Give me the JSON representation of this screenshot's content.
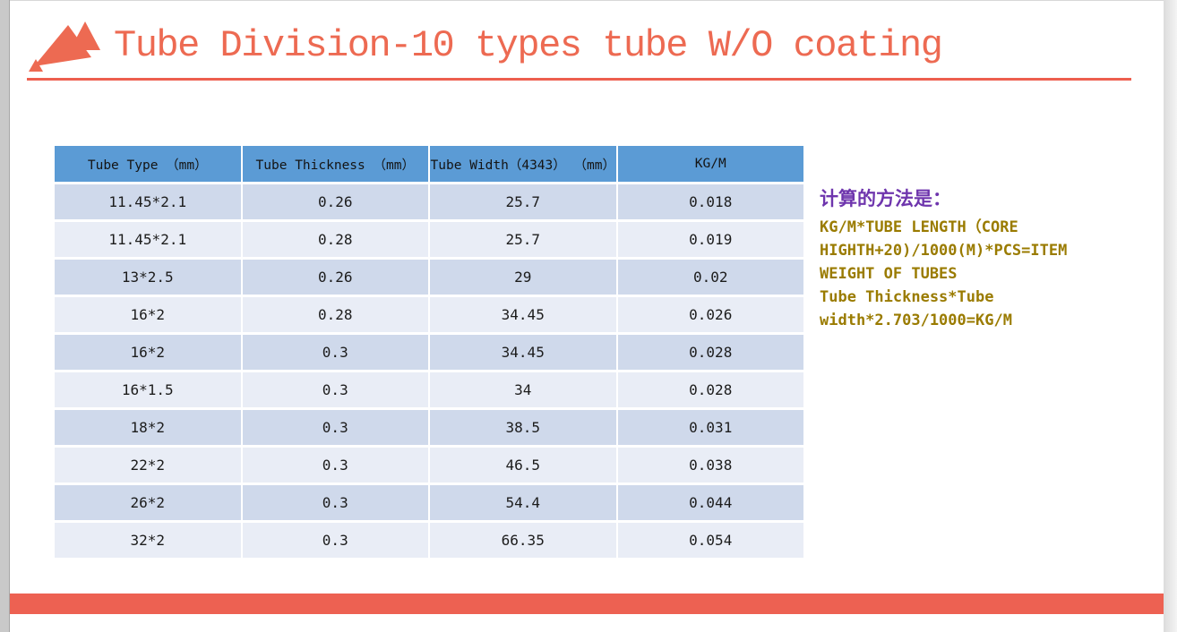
{
  "header": {
    "title": "Tube Division-10 types tube W/O coating",
    "logo": "red-triangle-mountains"
  },
  "table": {
    "headers": [
      "Tube Type （mm）",
      "Tube Thickness （mm）",
      "Tube Width（4343） （mm）",
      "KG/M"
    ],
    "rows": [
      [
        "11.45*2.1",
        "0.26",
        "25.7",
        "0.018"
      ],
      [
        "11.45*2.1",
        "0.28",
        "25.7",
        "0.019"
      ],
      [
        "13*2.5",
        "0.26",
        "29",
        "0.02"
      ],
      [
        "16*2",
        "0.28",
        "34.45",
        "0.026"
      ],
      [
        "16*2",
        "0.3",
        "34.45",
        "0.028"
      ],
      [
        "16*1.5",
        "0.3",
        "34",
        "0.028"
      ],
      [
        "18*2",
        "0.3",
        "38.5",
        "0.031"
      ],
      [
        "22*2",
        "0.3",
        "46.5",
        "0.038"
      ],
      [
        "26*2",
        "0.3",
        "54.4",
        "0.044"
      ],
      [
        "32*2",
        "0.3",
        "66.35",
        "0.054"
      ]
    ]
  },
  "calc_note": {
    "heading": "计算的方法是：",
    "lines": [
      "KG/M*TUBE LENGTH（CORE",
      "HIGHTH+20)/1000(M)*PCS=ITEM",
      "WEIGHT OF TUBES",
      "Tube Thickness*Tube",
      "width*2.703/1000=KG/M"
    ]
  },
  "colors": {
    "accent_coral": "#ED6A52",
    "underline_coral": "#ED5F4F",
    "footer_bar_coral": "#ED6152",
    "table_header_blue": "#5B9BD5",
    "row_band_dark": "#CFD9EB",
    "row_band_light": "#E9EDF6",
    "note_heading_purple": "#6E35AD",
    "note_text_olive": "#9A7B00"
  }
}
